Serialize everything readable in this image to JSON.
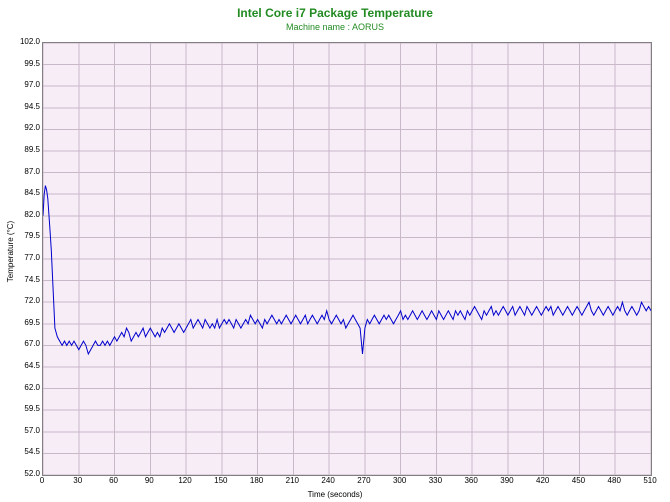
{
  "chart": {
    "type": "line",
    "title": "Intel Core i7 Package Temperature",
    "subtitle": "Machine name : AORUS",
    "title_color": "#228b22",
    "title_fontsize": 12,
    "subtitle_fontsize": 9,
    "xlabel": "Time (seconds)",
    "ylabel": "Temperature (°C)",
    "label_fontsize": 8,
    "tick_fontsize": 8,
    "background_color": "#ffffff",
    "plot_background_color": "#f7edf7",
    "grid_color": "#c8b8c8",
    "axis_color": "#808080",
    "series_color": "#0000cc",
    "line_width": 1,
    "xlim": [
      0,
      510
    ],
    "ylim": [
      52.0,
      102.0
    ],
    "xtick_step": 30,
    "ytick_step": 2.5,
    "x": [
      0,
      1,
      2,
      3,
      4,
      5,
      6,
      7,
      8,
      9,
      10,
      12,
      14,
      16,
      18,
      20,
      22,
      24,
      26,
      28,
      30,
      32,
      34,
      36,
      38,
      40,
      42,
      44,
      46,
      48,
      50,
      52,
      54,
      56,
      58,
      60,
      62,
      64,
      66,
      68,
      70,
      72,
      74,
      76,
      78,
      80,
      82,
      84,
      86,
      88,
      90,
      92,
      94,
      96,
      98,
      100,
      102,
      104,
      106,
      108,
      110,
      112,
      114,
      116,
      118,
      120,
      122,
      124,
      126,
      128,
      130,
      132,
      134,
      136,
      138,
      140,
      142,
      144,
      146,
      148,
      150,
      152,
      154,
      156,
      158,
      160,
      162,
      164,
      166,
      168,
      170,
      172,
      174,
      176,
      178,
      180,
      182,
      184,
      186,
      188,
      190,
      192,
      194,
      196,
      198,
      200,
      202,
      204,
      206,
      208,
      210,
      212,
      214,
      216,
      218,
      220,
      222,
      224,
      226,
      228,
      230,
      232,
      234,
      236,
      238,
      240,
      242,
      244,
      246,
      248,
      250,
      252,
      254,
      256,
      258,
      260,
      262,
      264,
      266,
      268,
      270,
      272,
      274,
      276,
      278,
      280,
      282,
      284,
      286,
      288,
      290,
      292,
      294,
      296,
      298,
      300,
      302,
      304,
      306,
      308,
      310,
      312,
      314,
      316,
      318,
      320,
      322,
      324,
      326,
      328,
      330,
      332,
      334,
      336,
      338,
      340,
      342,
      344,
      346,
      348,
      350,
      352,
      354,
      356,
      358,
      360,
      362,
      364,
      366,
      368,
      370,
      372,
      374,
      376,
      378,
      380,
      382,
      384,
      386,
      388,
      390,
      392,
      394,
      396,
      398,
      400,
      402,
      404,
      406,
      408,
      410,
      412,
      414,
      416,
      418,
      420,
      422,
      424,
      426,
      428,
      430,
      432,
      434,
      436,
      438,
      440,
      442,
      444,
      446,
      448,
      450,
      452,
      454,
      456,
      458,
      460,
      462,
      464,
      466,
      468,
      470,
      472,
      474,
      476,
      478,
      480,
      482,
      484,
      486,
      488,
      490,
      492,
      494,
      496,
      498,
      500,
      502,
      504,
      506,
      508,
      510
    ],
    "y": [
      82.0,
      84.5,
      85.5,
      85.0,
      84.0,
      82.0,
      80.0,
      78.0,
      75.0,
      72.0,
      69.0,
      68.0,
      67.5,
      67.0,
      67.5,
      67.0,
      67.5,
      67.0,
      67.5,
      67.0,
      66.5,
      67.0,
      67.5,
      67.0,
      66.0,
      66.5,
      67.0,
      67.5,
      67.0,
      67.0,
      67.5,
      67.0,
      67.5,
      67.0,
      67.5,
      68.0,
      67.5,
      68.0,
      68.5,
      68.0,
      69.0,
      68.5,
      67.5,
      68.0,
      68.5,
      68.0,
      68.5,
      69.0,
      68.0,
      68.5,
      69.0,
      68.5,
      68.0,
      68.5,
      68.0,
      69.0,
      68.5,
      69.0,
      69.5,
      69.0,
      68.5,
      69.0,
      69.5,
      69.0,
      68.5,
      69.0,
      69.5,
      70.0,
      69.0,
      69.5,
      70.0,
      69.5,
      69.0,
      70.0,
      69.5,
      69.0,
      69.5,
      69.0,
      70.0,
      69.0,
      69.5,
      70.0,
      69.5,
      70.0,
      69.5,
      69.0,
      70.0,
      69.5,
      69.0,
      69.5,
      70.0,
      69.5,
      70.5,
      70.0,
      69.5,
      70.0,
      69.5,
      69.0,
      70.0,
      69.5,
      70.0,
      70.5,
      70.0,
      69.5,
      70.0,
      69.5,
      70.0,
      70.5,
      70.0,
      69.5,
      70.0,
      70.5,
      70.0,
      69.5,
      70.0,
      70.5,
      69.5,
      70.0,
      70.5,
      70.0,
      69.5,
      70.0,
      70.5,
      70.0,
      71.0,
      70.0,
      69.5,
      70.0,
      70.5,
      70.0,
      69.5,
      70.0,
      69.0,
      69.5,
      70.0,
      70.5,
      70.0,
      69.5,
      69.0,
      66.0,
      69.0,
      70.0,
      69.5,
      70.0,
      70.5,
      70.0,
      69.5,
      70.0,
      70.5,
      70.0,
      70.5,
      70.0,
      69.5,
      70.0,
      70.5,
      71.0,
      70.0,
      70.5,
      70.0,
      70.5,
      71.0,
      70.5,
      70.0,
      70.5,
      71.0,
      70.5,
      70.0,
      70.5,
      71.0,
      70.5,
      70.0,
      71.0,
      70.5,
      70.0,
      70.5,
      71.0,
      70.5,
      70.0,
      71.0,
      70.5,
      71.0,
      70.5,
      70.0,
      71.0,
      70.5,
      71.0,
      71.5,
      71.0,
      70.5,
      70.0,
      71.0,
      70.5,
      71.0,
      71.5,
      70.5,
      71.0,
      70.5,
      71.0,
      71.5,
      71.0,
      70.5,
      71.0,
      71.5,
      70.5,
      71.0,
      71.5,
      71.0,
      70.5,
      71.5,
      71.0,
      70.5,
      71.0,
      71.5,
      71.0,
      70.5,
      71.0,
      71.5,
      71.0,
      71.5,
      70.5,
      71.0,
      71.5,
      71.0,
      70.5,
      71.0,
      71.5,
      71.0,
      70.5,
      71.0,
      71.5,
      71.0,
      70.5,
      71.0,
      71.5,
      72.0,
      71.0,
      70.5,
      71.0,
      71.5,
      71.0,
      70.5,
      71.0,
      71.5,
      71.0,
      70.5,
      71.0,
      71.5,
      71.0,
      72.0,
      71.0,
      70.5,
      71.0,
      71.5,
      71.0,
      70.5,
      71.0,
      72.0,
      71.5,
      71.0,
      71.5,
      71.0
    ]
  }
}
